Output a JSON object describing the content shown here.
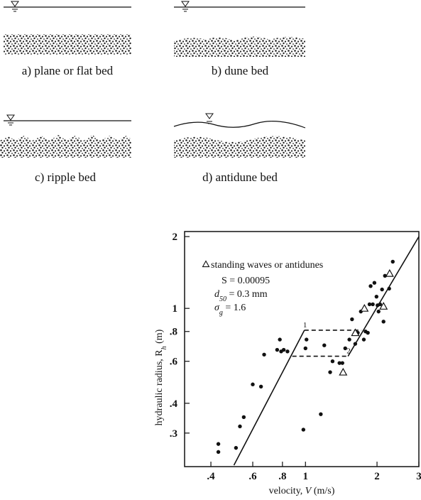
{
  "panels": [
    {
      "label": "a) plane or flat bed"
    },
    {
      "label": "b) dune bed"
    },
    {
      "label": "c) ripple bed"
    },
    {
      "label": "d) antidune bed"
    }
  ],
  "chart_data": {
    "type": "scatter",
    "log_x": true,
    "log_y": true,
    "x_label": [
      "velocity, ",
      "V",
      " (m/s)"
    ],
    "y_label": [
      "hydraulic radius, R",
      "h",
      " (m)"
    ],
    "xlim": [
      0.31,
      3
    ],
    "ylim": [
      0.217,
      2.1
    ],
    "xticks": [
      {
        "value": 0.4,
        "label": ".4"
      },
      {
        "value": 0.6,
        "label": ".6"
      },
      {
        "value": 0.8,
        "label": ".8"
      },
      1,
      2,
      3
    ],
    "yticks": [
      {
        "value": 0.3,
        "label": ".3"
      },
      {
        "value": 0.4,
        "label": ".4"
      },
      {
        "value": 0.6,
        "label": ".6"
      },
      {
        "value": 0.8,
        "label": ".8"
      },
      1,
      2
    ],
    "annotations": [
      "S = 0.00095",
      [
        "d",
        "50",
        " = 0.3 mm"
      ],
      [
        "σ",
        "g",
        " = 1.6"
      ]
    ],
    "series": [
      {
        "marker": "circle",
        "color": "#111",
        "x": [
          0.43,
          0.43,
          0.51,
          0.53,
          0.55,
          0.6,
          0.65,
          0.67,
          0.76,
          0.78,
          0.79,
          0.81,
          0.84,
          0.98,
          1.0,
          1.01,
          1.16,
          1.2,
          1.27,
          1.3,
          1.39,
          1.43,
          1.47,
          1.53,
          1.57,
          1.62,
          1.66,
          1.71,
          1.76,
          1.79,
          1.83,
          1.86,
          1.88,
          1.92,
          1.95,
          1.99,
          2.01,
          2.03,
          2.06,
          2.1,
          2.16,
          2.25,
          2.33,
          2.13
        ],
        "values": [
          0.27,
          0.25,
          0.26,
          0.32,
          0.35,
          0.48,
          0.47,
          0.64,
          0.67,
          0.74,
          0.66,
          0.67,
          0.66,
          0.31,
          0.68,
          0.74,
          0.36,
          0.7,
          0.54,
          0.6,
          0.59,
          0.59,
          0.68,
          0.74,
          0.9,
          0.71,
          0.79,
          0.97,
          0.74,
          0.8,
          0.79,
          1.04,
          1.24,
          1.04,
          1.28,
          1.12,
          1.03,
          0.97,
          1.04,
          1.2,
          1.37,
          1.21,
          1.57,
          0.88
        ]
      },
      {
        "name": "standing waves or antidunes",
        "marker": "triangle",
        "color": "#111",
        "x": [
          1.44,
          1.62,
          1.77,
          2.13,
          2.26
        ],
        "values": [
          0.54,
          0.79,
          1.0,
          1.02,
          1.4
        ]
      }
    ],
    "lines": [
      {
        "style": "solid",
        "x": [
          0.5,
          0.99
        ],
        "values": [
          0.22,
          0.81
        ]
      },
      {
        "style": "solid",
        "x": [
          1.51,
          3
        ],
        "values": [
          0.63,
          2
        ]
      },
      {
        "style": "dashed",
        "x": [
          0.99,
          1.72
        ],
        "values": [
          0.81,
          0.81
        ]
      },
      {
        "style": "dashed",
        "x": [
          0.88,
          1.51
        ],
        "values": [
          0.63,
          0.63
        ]
      }
    ],
    "point_labels": [
      {
        "text": "1",
        "x": 0.99,
        "y": 0.81
      },
      {
        "text": "2",
        "x": 1.51,
        "y": 0.63
      }
    ]
  }
}
